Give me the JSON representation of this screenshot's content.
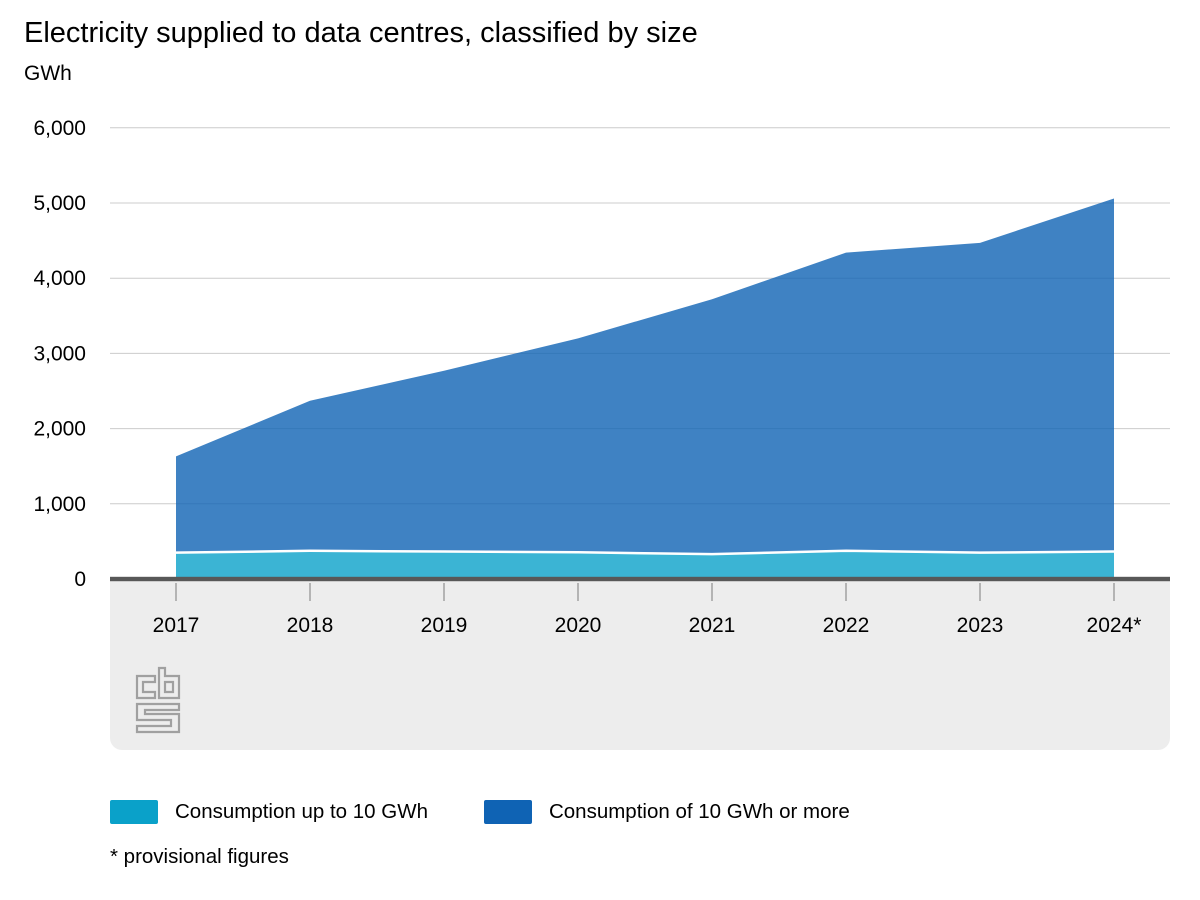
{
  "title": "Electricity supplied to data centres, classified by size",
  "y_axis_unit": "GWh",
  "footnote": "* provisional figures",
  "logo_name": "cbs-logo",
  "legend": [
    {
      "label": "Consumption up to 10 GWh",
      "color": "#0aa1c9"
    },
    {
      "label": "Consumption of 10 GWh or more",
      "color": "#0f63b4"
    }
  ],
  "colors": {
    "small_series": "#0aa1c9",
    "large_series": "#0f63b4",
    "gridline": "#cccccc",
    "zero_axis": "#585858",
    "tick": "#b4b4b4",
    "axis_band": "#ededed",
    "logo_gray": "#a0a0a0",
    "boundary_stroke": "#ffffff",
    "text": "#000000"
  },
  "chart_data": {
    "type": "area",
    "stacked": true,
    "title": "Electricity supplied to data centres, classified by size",
    "ylabel": "GWh",
    "xlabel": "",
    "categories": [
      "2017",
      "2018",
      "2019",
      "2020",
      "2021",
      "2022",
      "2023",
      "2024*"
    ],
    "series": [
      {
        "name": "Consumption up to 10 GWh",
        "color": "#0aa1c9",
        "values": [
          350,
          375,
          365,
          355,
          330,
          375,
          350,
          365
        ]
      },
      {
        "name": "Consumption of 10 GWh or more",
        "color": "#0f63b4",
        "values": [
          1280,
          1995,
          2405,
          2845,
          3390,
          3965,
          4120,
          4695
        ]
      }
    ],
    "totals": [
      1630,
      2370,
      2770,
      3200,
      3720,
      4340,
      4470,
      5060
    ],
    "ylim": [
      0,
      6000
    ],
    "yticks": [
      0,
      1000,
      2000,
      3000,
      4000,
      5000,
      6000
    ],
    "ytick_labels": [
      "0",
      "1,000",
      "2,000",
      "3,000",
      "4,000",
      "5,000",
      "6,000"
    ],
    "grid": true,
    "fill_opacity": 0.8,
    "legend_position": "bottom"
  }
}
